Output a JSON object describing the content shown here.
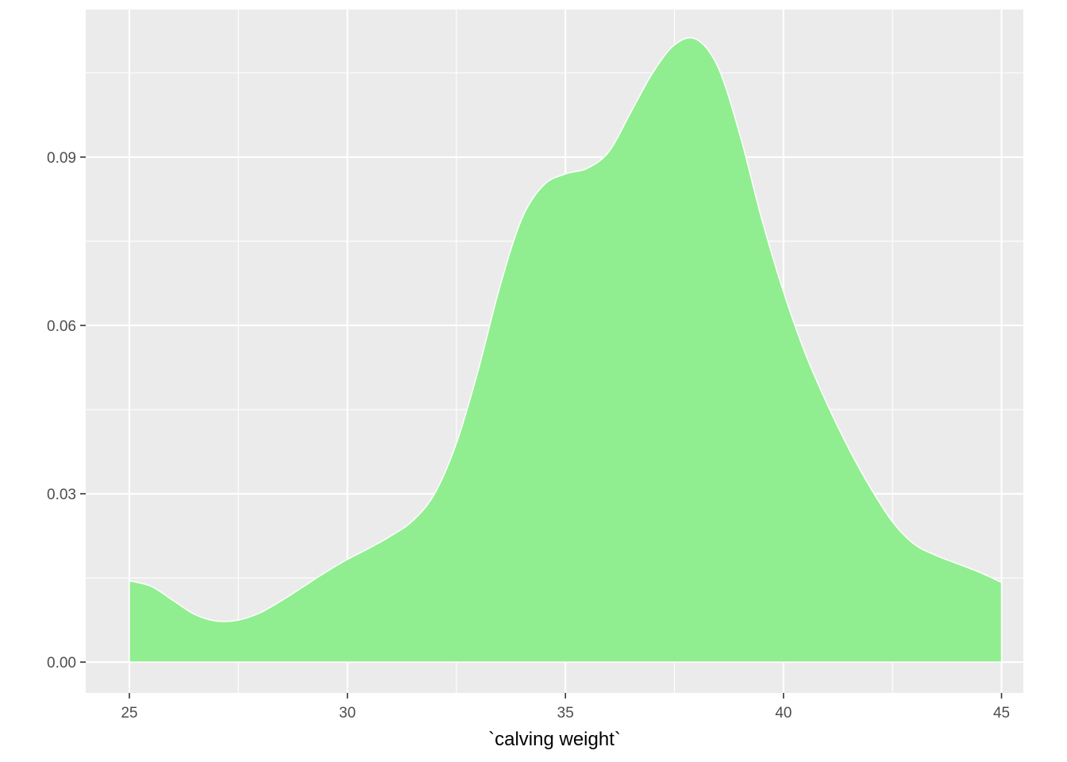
{
  "chart_data": {
    "type": "area",
    "title": "",
    "xlabel": "`calving weight`",
    "ylabel": "",
    "xlim": [
      24,
      45.5
    ],
    "ylim": [
      -0.0055,
      0.1163
    ],
    "x_ticks": [
      25,
      30,
      35,
      40,
      45
    ],
    "x_tick_labels": [
      "25",
      "30",
      "35",
      "40",
      "45"
    ],
    "y_ticks": [
      0.0,
      0.03,
      0.06,
      0.09
    ],
    "y_tick_labels": [
      "0.00",
      "0.03",
      "0.06",
      "0.09"
    ],
    "grid": true,
    "legend": "none",
    "colors": {
      "panel_background": "#ebebeb",
      "grid_line": "#ffffff",
      "fill": "#90ee90",
      "outline": "#ffffff",
      "tick_text": "#4d4d4d",
      "tick_mark": "#333333"
    },
    "series": [
      {
        "x": [
          25.0,
          25.5,
          26.0,
          26.5,
          27.0,
          27.5,
          28.0,
          28.5,
          29.0,
          29.5,
          30.0,
          30.5,
          31.0,
          31.5,
          32.0,
          32.5,
          33.0,
          33.5,
          34.0,
          34.5,
          35.0,
          35.5,
          36.0,
          36.5,
          37.0,
          37.5,
          38.0,
          38.5,
          39.0,
          39.5,
          40.0,
          40.5,
          41.0,
          41.5,
          42.0,
          42.5,
          43.0,
          43.5,
          44.0,
          44.5,
          45.0
        ],
        "y": [
          0.0145,
          0.0135,
          0.011,
          0.0085,
          0.0073,
          0.0075,
          0.0088,
          0.011,
          0.0135,
          0.016,
          0.0183,
          0.0203,
          0.0225,
          0.0252,
          0.03,
          0.039,
          0.052,
          0.067,
          0.079,
          0.085,
          0.087,
          0.088,
          0.091,
          0.098,
          0.105,
          0.11,
          0.111,
          0.106,
          0.094,
          0.079,
          0.066,
          0.055,
          0.046,
          0.038,
          0.031,
          0.025,
          0.021,
          0.019,
          0.0175,
          0.016,
          0.0142
        ]
      }
    ]
  }
}
